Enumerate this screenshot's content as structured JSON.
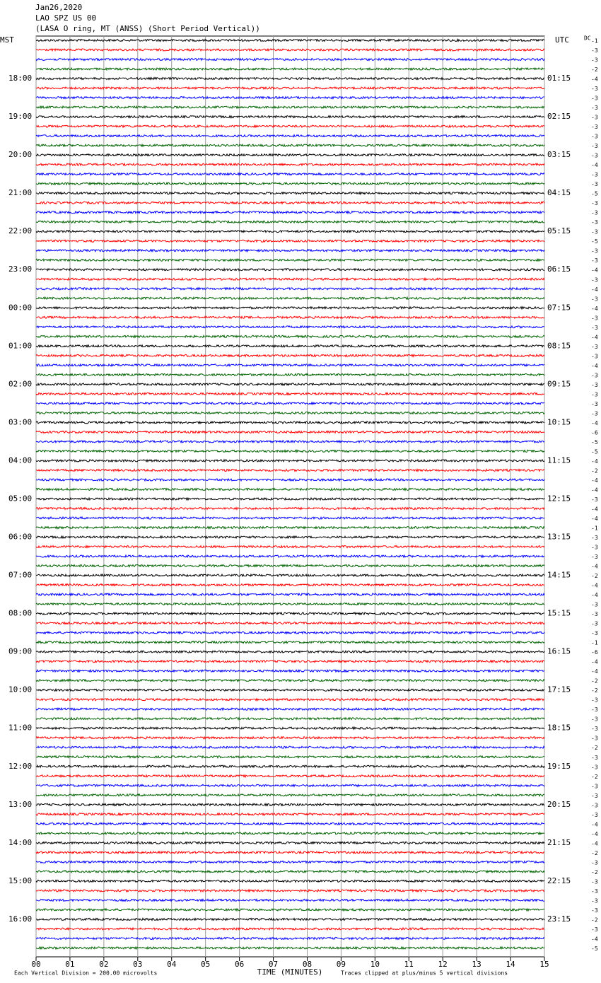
{
  "chart_data": {
    "type": "helicorder",
    "title_lines": [
      "Jan26,2020",
      "LAO SPZ US 00",
      "(LASA O ring, MT (ANSS) (Short Period Vertical))"
    ],
    "left_axis_label": "MST",
    "right_axis_label": "UTC",
    "dc_label": "DC",
    "mst_labels": [
      "18:00",
      "19:00",
      "20:00",
      "21:00",
      "22:00",
      "23:00",
      "00:00",
      "01:00",
      "02:00",
      "03:00",
      "04:00",
      "05:00",
      "06:00",
      "07:00",
      "08:00",
      "09:00",
      "10:00",
      "11:00",
      "12:00",
      "13:00",
      "14:00",
      "15:00",
      "16:00"
    ],
    "utc_labels": [
      "01:15",
      "02:15",
      "03:15",
      "04:15",
      "05:15",
      "06:15",
      "07:15",
      "08:15",
      "09:15",
      "10:15",
      "11:15",
      "12:15",
      "13:15",
      "14:15",
      "15:15",
      "16:15",
      "17:15",
      "18:15",
      "19:15",
      "20:15",
      "21:15",
      "22:15",
      "23:15"
    ],
    "dc_offsets": [
      -1,
      -3,
      -3,
      -2,
      -4,
      -3,
      -3,
      -3,
      -3,
      -3,
      -3,
      -3,
      -3,
      -4,
      -3,
      -3,
      -5,
      -3,
      -3,
      -3,
      -3,
      -5,
      -3,
      -3,
      -4,
      -3,
      -4,
      -3,
      -4,
      -3,
      -3,
      -4,
      -3,
      -3,
      -4,
      -3,
      -3,
      -3,
      -3,
      -3,
      -4,
      -6,
      -5,
      -5,
      -4,
      -2,
      -4,
      -4,
      -3,
      -4,
      -4,
      -1,
      -3,
      -3,
      -3,
      -4,
      -2,
      -4,
      -4,
      -3,
      -3,
      -3,
      -3,
      -1,
      -6,
      -4,
      -4,
      -2,
      -2,
      -3,
      -3,
      -3,
      -3,
      -3,
      -2,
      -3,
      -3,
      -2,
      -3,
      -3,
      -3,
      -3,
      -4,
      -4,
      -4,
      -2,
      -3,
      -2,
      -3,
      -3,
      -3,
      -3,
      -2,
      -3,
      -4,
      -5
    ],
    "trace_colors": [
      "#000000",
      "#ff0000",
      "#0000ff",
      "#006400"
    ],
    "xlim": [
      0,
      15
    ],
    "xticks": [
      {
        "value": 0,
        "label": "00"
      },
      {
        "value": 1,
        "label": "01"
      },
      {
        "value": 2,
        "label": "02"
      },
      {
        "value": 3,
        "label": "03"
      },
      {
        "value": 4,
        "label": "04"
      },
      {
        "value": 5,
        "label": "05"
      },
      {
        "value": 6,
        "label": "06"
      },
      {
        "value": 7,
        "label": "07"
      },
      {
        "value": 8,
        "label": "08"
      },
      {
        "value": 9,
        "label": "09"
      },
      {
        "value": 10,
        "label": "10"
      },
      {
        "value": 11,
        "label": "11"
      },
      {
        "value": 12,
        "label": "12"
      },
      {
        "value": 13,
        "label": "13"
      },
      {
        "value": 14,
        "label": "14"
      },
      {
        "value": 15,
        "label": "15"
      }
    ],
    "grid": true,
    "xlabel": "TIME (MINUTES)",
    "scale_note": "Each Vertical Division =  200.00 microvolts",
    "clip_note": "Traces clipped at plus/minus 5 vertical divisions"
  }
}
